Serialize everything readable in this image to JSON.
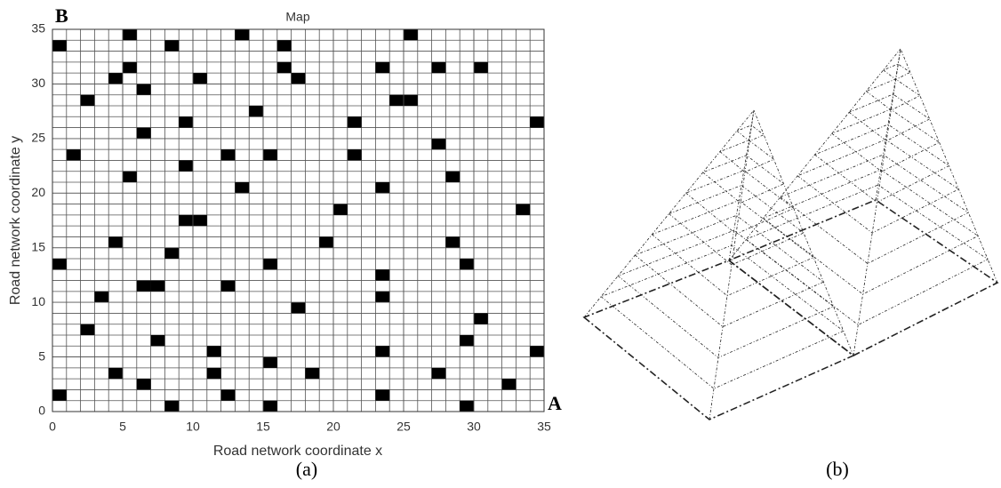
{
  "chart_data": {
    "type": "grid",
    "title": "Map",
    "xlabel": "Road network coordinate x",
    "ylabel": "Road network coordinate y",
    "xlim": [
      0,
      35
    ],
    "ylim": [
      0,
      35
    ],
    "xticks": [
      0,
      5,
      10,
      15,
      20,
      25,
      30,
      35
    ],
    "yticks": [
      0,
      5,
      10,
      15,
      20,
      25,
      30,
      35
    ],
    "grid": true,
    "color": "#000000",
    "annotations": [
      "A",
      "B"
    ],
    "obstacles": [
      [
        5,
        34
      ],
      [
        13,
        34
      ],
      [
        25,
        34
      ],
      [
        0,
        33
      ],
      [
        8,
        33
      ],
      [
        16,
        33
      ],
      [
        5,
        31
      ],
      [
        16,
        31
      ],
      [
        23,
        31
      ],
      [
        27,
        31
      ],
      [
        30,
        31
      ],
      [
        4,
        30
      ],
      [
        10,
        30
      ],
      [
        17,
        30
      ],
      [
        6,
        29
      ],
      [
        2,
        28
      ],
      [
        24,
        28
      ],
      [
        25,
        28
      ],
      [
        14,
        27
      ],
      [
        9,
        26
      ],
      [
        21,
        26
      ],
      [
        34,
        26
      ],
      [
        6,
        25
      ],
      [
        27,
        24
      ],
      [
        1,
        23
      ],
      [
        12,
        23
      ],
      [
        15,
        23
      ],
      [
        21,
        23
      ],
      [
        9,
        22
      ],
      [
        5,
        21
      ],
      [
        28,
        21
      ],
      [
        13,
        20
      ],
      [
        23,
        20
      ],
      [
        20,
        18
      ],
      [
        33,
        18
      ],
      [
        9,
        17
      ],
      [
        10,
        17
      ],
      [
        4,
        15
      ],
      [
        19,
        15
      ],
      [
        28,
        15
      ],
      [
        8,
        14
      ],
      [
        0,
        13
      ],
      [
        15,
        13
      ],
      [
        29,
        13
      ],
      [
        23,
        12
      ],
      [
        6,
        11
      ],
      [
        7,
        11
      ],
      [
        12,
        11
      ],
      [
        3,
        10
      ],
      [
        23,
        10
      ],
      [
        17,
        9
      ],
      [
        30,
        8
      ],
      [
        2,
        7
      ],
      [
        7,
        6
      ],
      [
        29,
        6
      ],
      [
        11,
        5
      ],
      [
        23,
        5
      ],
      [
        34,
        5
      ],
      [
        15,
        4
      ],
      [
        4,
        3
      ],
      [
        11,
        3
      ],
      [
        18,
        3
      ],
      [
        27,
        3
      ],
      [
        6,
        2
      ],
      [
        32,
        2
      ],
      [
        0,
        1
      ],
      [
        12,
        1
      ],
      [
        23,
        1
      ],
      [
        8,
        0
      ],
      [
        15,
        0
      ],
      [
        29,
        0
      ]
    ]
  },
  "captions": [
    "(a)",
    "(b)"
  ]
}
